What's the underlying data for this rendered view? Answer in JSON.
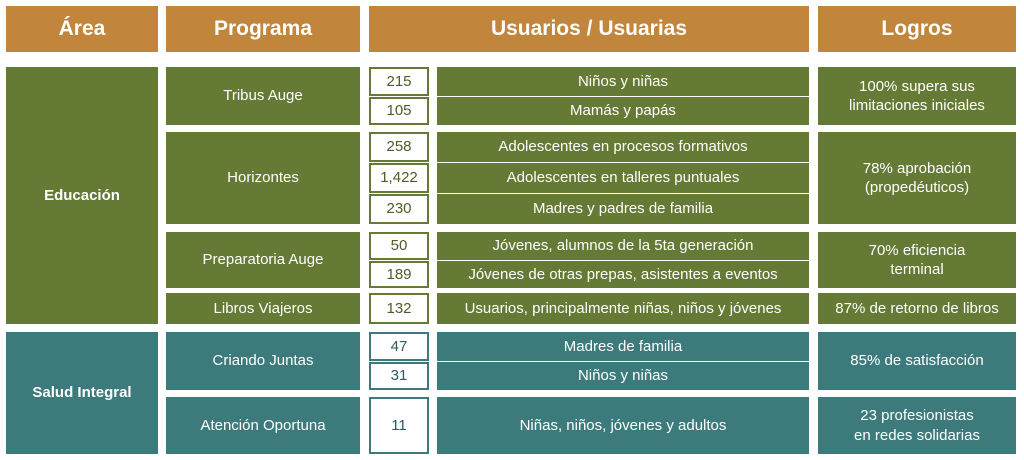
{
  "header": {
    "area": "Área",
    "programa": "Programa",
    "usuarios": "Usuarios / Usuarias",
    "logros": "Logros"
  },
  "areas": [
    {
      "name": "Educación"
    },
    {
      "name": "Salud Integral"
    }
  ],
  "programs": [
    {
      "name": "Tribus Auge",
      "rows": [
        {
          "count": "215",
          "users": "Niños y niñas"
        },
        {
          "count": "105",
          "users": "Mamás y papás"
        }
      ],
      "logro_lines": [
        "100% supera sus",
        "limitaciones iniciales"
      ]
    },
    {
      "name": "Horizontes",
      "rows": [
        {
          "count": "258",
          "users": "Adolescentes en procesos formativos"
        },
        {
          "count": "1,422",
          "users": "Adolescentes en talleres puntuales"
        },
        {
          "count": "230",
          "users": "Madres y padres de familia"
        }
      ],
      "logro_lines": [
        "78% aprobación",
        "(propedéuticos)"
      ]
    },
    {
      "name": "Preparatoria Auge",
      "rows": [
        {
          "count": "50",
          "users": "Jóvenes, alumnos de la 5ta generación"
        },
        {
          "count": "189",
          "users": "Jóvenes de otras prepas, asistentes a eventos"
        }
      ],
      "logro_lines": [
        "70% eficiencia",
        "terminal"
      ]
    },
    {
      "name": "Libros Viajeros",
      "rows": [
        {
          "count": "132",
          "users": "Usuarios, principalmente niñas, niños y jóvenes"
        }
      ],
      "logro_lines": [
        "87% de retorno de libros"
      ]
    },
    {
      "name": "Criando Juntas",
      "rows": [
        {
          "count": "47",
          "users": "Madres de familia"
        },
        {
          "count": "31",
          "users": "Niños y niñas"
        }
      ],
      "logro_lines": [
        "85% de satisfacción"
      ]
    },
    {
      "name": "Atención Oportuna",
      "rows": [
        {
          "count": "11",
          "users": "Niñas, niños, jóvenes y adultos"
        }
      ],
      "logro_lines": [
        "23 profesionistas",
        "en redes solidarias"
      ]
    }
  ],
  "colors": {
    "header": "#c1853c",
    "educacion": "#647a35",
    "salud": "#3d7a7c"
  }
}
